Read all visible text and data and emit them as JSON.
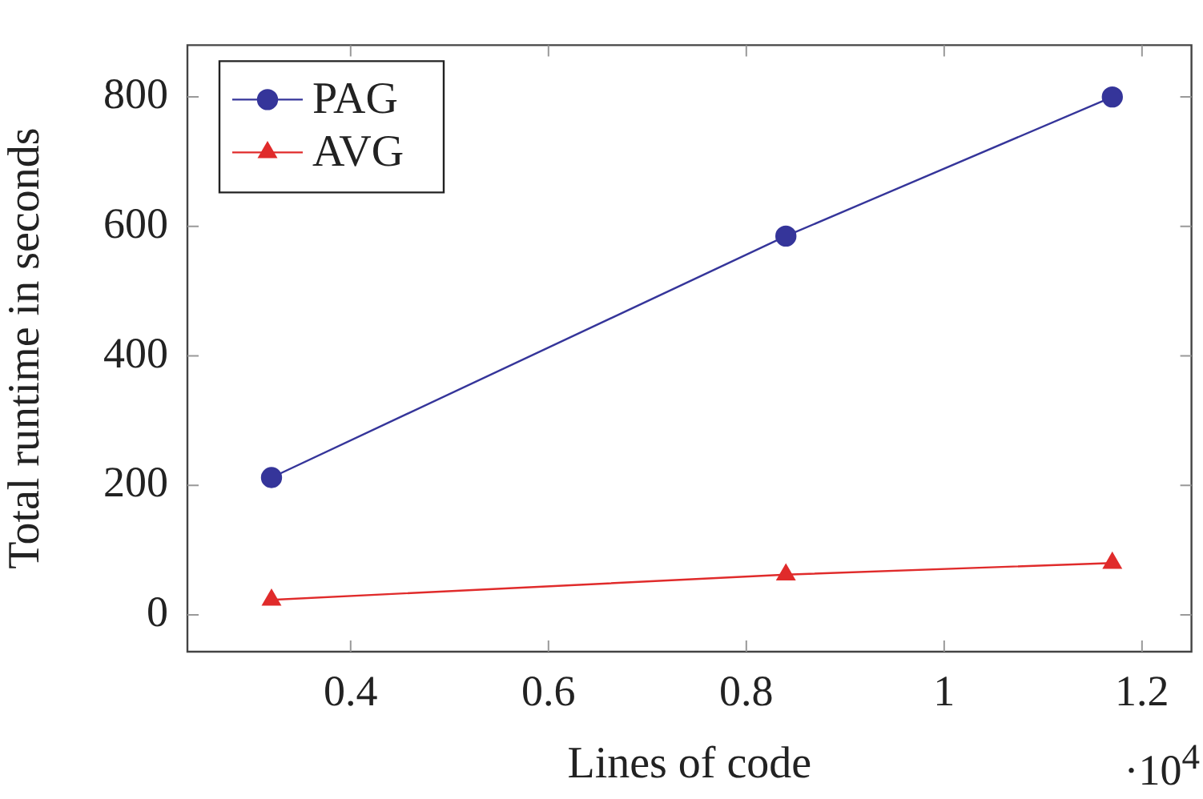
{
  "chart_data": {
    "type": "line",
    "xlabel": "Lines of code",
    "ylabel": "Total runtime in seconds",
    "x": [
      0.32,
      0.84,
      1.17
    ],
    "series": [
      {
        "name": "PAG",
        "color": "#35359a",
        "values": [
          212,
          585,
          800
        ],
        "marker": "circle"
      },
      {
        "name": "AVG",
        "color": "#e02b2b",
        "values": [
          23,
          62,
          80
        ],
        "marker": "triangle"
      }
    ],
    "xlim": [
      0.235,
      1.25
    ],
    "xticks": [
      0.4,
      0.6,
      0.8,
      1,
      1.2
    ],
    "ylim": [
      -57,
      880
    ],
    "yticks": [
      0,
      200,
      400,
      600,
      800
    ],
    "grid": false,
    "legend": "top left",
    "line_style": "solid",
    "annotations": [
      "·10$^{4}$"
    ]
  }
}
